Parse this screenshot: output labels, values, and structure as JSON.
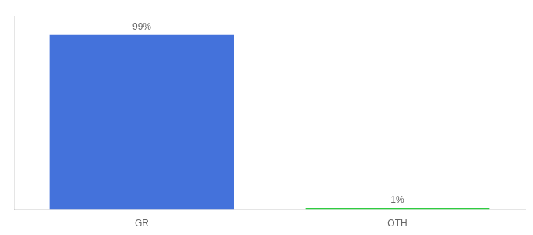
{
  "chart_data": {
    "type": "bar",
    "categories": [
      "GR",
      "OTH"
    ],
    "values": [
      99,
      1
    ],
    "value_labels": [
      "99%",
      "1%"
    ],
    "colors": [
      "#4472db",
      "#2ecc40"
    ],
    "ylim": [
      0,
      110
    ],
    "data_labels": true,
    "tick_labels": "x",
    "grid": false
  }
}
